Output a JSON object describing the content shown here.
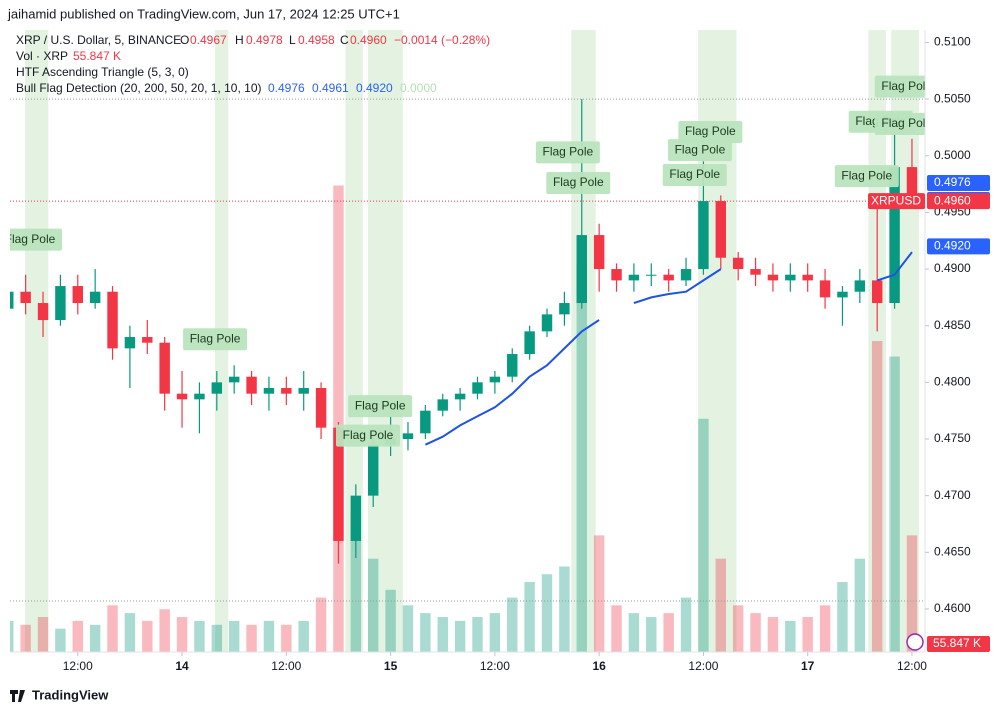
{
  "header": {
    "publisher": "jaihamid published on TradingView.com, Jun 17, 2024 12:25 UTC+1",
    "footer": "TradingView"
  },
  "legend": {
    "symbol": "XRP / U.S. Dollar, 5, BINANCE",
    "o_label": "O",
    "o": "0.4967",
    "h_label": "H",
    "h": "0.4978",
    "l_label": "L",
    "l": "0.4958",
    "c_label": "C",
    "c": "0.4960",
    "change": "−0.0014 (−0.28%)",
    "vol_label": "Vol · XRP",
    "vol": "55.847 K",
    "ind1": "HTF Ascending Triangle (5, 3, 0)",
    "ind2": "Bull Flag Detection (20, 200, 50, 20, 1, 10, 10)",
    "ind2_values": [
      "0.4976",
      "0.4961",
      "0.4920",
      "0.0000"
    ]
  },
  "chart_data": {
    "type": "candlestick",
    "up_color": "#089981",
    "down_color": "#f23645",
    "xlim": [
      0.1,
      52.75
    ],
    "ylim": [
      0.4562,
      0.5111
    ],
    "grid": false,
    "xticks": [
      {
        "value": 4,
        "label": "12:00"
      },
      {
        "value": 10,
        "label": "14"
      },
      {
        "value": 16,
        "label": "12:00"
      },
      {
        "value": 22,
        "label": "15"
      },
      {
        "value": 28,
        "label": "12:00"
      },
      {
        "value": 34,
        "label": "16"
      },
      {
        "value": 40,
        "label": "12:00"
      },
      {
        "value": 46,
        "label": "17"
      },
      {
        "value": 52,
        "label": "12:00"
      }
    ],
    "yticks": [
      {
        "value": 0.51,
        "label": "0.5100"
      },
      {
        "value": 0.505,
        "label": "0.5050"
      },
      {
        "value": 0.5,
        "label": "0.5000"
      },
      {
        "value": 0.495,
        "label": "0.4950"
      },
      {
        "value": 0.49,
        "label": "0.4900"
      },
      {
        "value": 0.485,
        "label": "0.4850"
      },
      {
        "value": 0.48,
        "label": "0.4800"
      },
      {
        "value": 0.475,
        "label": "0.4750"
      },
      {
        "value": 0.47,
        "label": "0.4700"
      },
      {
        "value": 0.465,
        "label": "0.4650"
      },
      {
        "value": 0.46,
        "label": "0.4600"
      }
    ],
    "open": [
      0.4865,
      0.488,
      0.487,
      0.4855,
      0.4885,
      0.487,
      0.488,
      0.483,
      0.484,
      0.4835,
      0.479,
      0.4785,
      0.479,
      0.48,
      0.4805,
      0.479,
      0.4795,
      0.479,
      0.4795,
      0.476,
      0.466,
      0.47,
      0.4745,
      0.475,
      0.4755,
      0.4775,
      0.4785,
      0.479,
      0.48,
      0.4805,
      0.4825,
      0.4845,
      0.486,
      0.487,
      0.493,
      0.49,
      0.489,
      0.4895,
      0.4895,
      0.489,
      0.49,
      0.496,
      0.491,
      0.49,
      0.4895,
      0.489,
      0.4895,
      0.489,
      0.4875,
      0.488,
      0.489,
      0.487,
      0.499
    ],
    "high": [
      0.4885,
      0.4895,
      0.488,
      0.4895,
      0.4895,
      0.49,
      0.4885,
      0.485,
      0.4855,
      0.484,
      0.481,
      0.48,
      0.481,
      0.4815,
      0.481,
      0.4805,
      0.4805,
      0.481,
      0.48,
      0.4765,
      0.471,
      0.4755,
      0.477,
      0.4765,
      0.478,
      0.479,
      0.4795,
      0.4805,
      0.481,
      0.483,
      0.485,
      0.4865,
      0.488,
      0.505,
      0.494,
      0.4905,
      0.4905,
      0.4905,
      0.49,
      0.491,
      0.4995,
      0.4965,
      0.4915,
      0.491,
      0.4905,
      0.4905,
      0.4905,
      0.49,
      0.4885,
      0.49,
      0.4955,
      0.5035,
      0.5015
    ],
    "low": [
      0.4855,
      0.486,
      0.484,
      0.485,
      0.486,
      0.4865,
      0.482,
      0.4795,
      0.4825,
      0.4775,
      0.476,
      0.4755,
      0.4775,
      0.479,
      0.478,
      0.4775,
      0.478,
      0.4775,
      0.475,
      0.464,
      0.4645,
      0.469,
      0.4735,
      0.474,
      0.475,
      0.477,
      0.4775,
      0.4785,
      0.479,
      0.48,
      0.482,
      0.484,
      0.485,
      0.4865,
      0.488,
      0.488,
      0.488,
      0.4885,
      0.488,
      0.4885,
      0.4895,
      0.49,
      0.489,
      0.4885,
      0.488,
      0.488,
      0.488,
      0.4865,
      0.485,
      0.487,
      0.4845,
      0.4865,
      0.4955
    ],
    "close": [
      0.488,
      0.487,
      0.4855,
      0.4885,
      0.487,
      0.488,
      0.483,
      0.484,
      0.4835,
      0.479,
      0.4785,
      0.479,
      0.48,
      0.4805,
      0.479,
      0.4795,
      0.479,
      0.4795,
      0.476,
      0.466,
      0.47,
      0.4745,
      0.475,
      0.4755,
      0.4775,
      0.4785,
      0.479,
      0.48,
      0.4805,
      0.4825,
      0.4845,
      0.486,
      0.487,
      0.493,
      0.49,
      0.489,
      0.4895,
      0.4895,
      0.489,
      0.49,
      0.496,
      0.491,
      0.49,
      0.4895,
      0.489,
      0.4895,
      0.489,
      0.4875,
      0.488,
      0.489,
      0.487,
      0.499,
      0.496
    ],
    "volume": {
      "vlim": [
        0,
        800
      ],
      "values": [
        40,
        35,
        45,
        30,
        40,
        35,
        60,
        50,
        40,
        55,
        45,
        40,
        35,
        40,
        35,
        40,
        35,
        40,
        70,
        600,
        180,
        120,
        80,
        60,
        50,
        45,
        40,
        45,
        50,
        70,
        90,
        100,
        110,
        500,
        150,
        60,
        50,
        45,
        50,
        70,
        300,
        120,
        60,
        50,
        45,
        40,
        45,
        60,
        90,
        120,
        400,
        380,
        150
      ],
      "opacity": 0.35
    },
    "series": [
      {
        "name": "Bull Flag Detection",
        "color": "#1e53e5",
        "values": [
          null,
          null,
          null,
          null,
          null,
          null,
          null,
          null,
          null,
          null,
          null,
          null,
          null,
          null,
          null,
          null,
          null,
          null,
          null,
          null,
          null,
          null,
          null,
          null,
          0.4745,
          0.4752,
          0.4762,
          0.477,
          0.4778,
          0.479,
          0.4805,
          0.4815,
          0.483,
          0.4845,
          0.4855,
          null,
          0.487,
          0.4875,
          0.4878,
          0.488,
          0.489,
          0.49,
          null,
          null,
          null,
          null,
          null,
          null,
          null,
          null,
          0.489,
          0.4895,
          0.4915
        ]
      }
    ],
    "zones": {
      "color": "#e3f2e1",
      "ranges": [
        [
          0.97,
          2.3
        ],
        [
          11.9,
          12.66
        ],
        [
          19.4,
          20.4
        ],
        [
          20.7,
          22.7
        ],
        [
          32.4,
          33.8
        ],
        [
          39.7,
          41.9
        ],
        [
          49.5,
          50.5
        ],
        [
          50.8,
          52.4
        ]
      ]
    },
    "annotations": [
      {
        "text": "Flag Pole",
        "x": 1.25,
        "y": 0.4926
      },
      {
        "text": "Flag Pole",
        "x": 11.9,
        "y": 0.4838
      },
      {
        "text": "Flag Pole",
        "x": 32.2,
        "y": 0.5003
      },
      {
        "text": "Flag Pole",
        "x": 32.8,
        "y": 0.4976
      },
      {
        "text": "Flag Pole",
        "x": 40.4,
        "y": 0.5021
      },
      {
        "text": "Flag Pole",
        "x": 39.8,
        "y": 0.5005
      },
      {
        "text": "Flag Pole",
        "x": 39.5,
        "y": 0.4983
      },
      {
        "text": "Flag Pole",
        "x": 21.4,
        "y": 0.4779
      },
      {
        "text": "Flag Pole",
        "x": 20.7,
        "y": 0.4753
      },
      {
        "text": "Flag Pole",
        "x": 49.4,
        "y": 0.4982
      },
      {
        "text": "Flag Pole",
        "x": 50.2,
        "y": 0.503
      },
      {
        "text": "Flag Pole",
        "x": 51.7,
        "y": 0.5028
      },
      {
        "text": "Flag Pole",
        "x": 51.7,
        "y": 0.5061
      }
    ],
    "reference_lines": [
      {
        "value": 0.496,
        "color": "#f23645"
      },
      {
        "value": 0.505,
        "color": "#9598a1"
      },
      {
        "value": 0.4607,
        "color": "#9598a1"
      }
    ],
    "price_tags": [
      {
        "value": 0.4976,
        "label": "0.4976",
        "color": "#2962ff"
      },
      {
        "value": 0.4961,
        "label": "0.4961",
        "color": "#2962ff"
      },
      {
        "value": 0.496,
        "label": "0.4960",
        "color": "#f23645",
        "name": "XRPUSD"
      },
      {
        "value": 0.492,
        "label": "0.4920",
        "color": "#2962ff"
      }
    ],
    "volume_tag": {
      "label": "55.847 K",
      "color": "#f23645"
    }
  }
}
